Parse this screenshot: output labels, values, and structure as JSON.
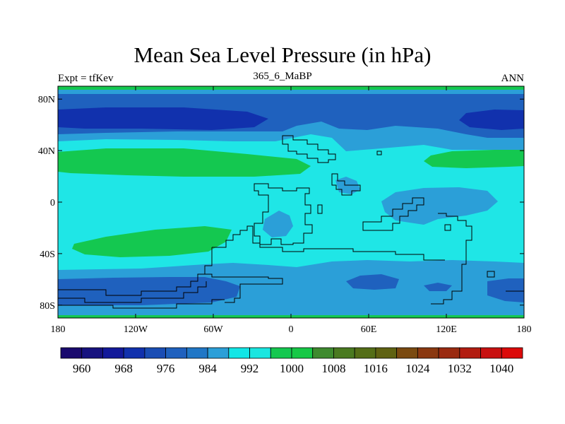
{
  "title": "Mean Sea Level Pressure (in hPa)",
  "subtitle_left": "Expt = tfKev",
  "subtitle_center": "365_6_MaBP",
  "subtitle_right": "ANN",
  "x_ticks": [
    {
      "lon": -180,
      "label": "180"
    },
    {
      "lon": -120,
      "label": "120W"
    },
    {
      "lon": -60,
      "label": "60W"
    },
    {
      "lon": 0,
      "label": "0"
    },
    {
      "lon": 60,
      "label": "60E"
    },
    {
      "lon": 120,
      "label": "120E"
    },
    {
      "lon": 180,
      "label": "180"
    }
  ],
  "y_ticks": [
    {
      "lat": 80,
      "label": "80N"
    },
    {
      "lat": 40,
      "label": "40N"
    },
    {
      "lat": 0,
      "label": "0"
    },
    {
      "lat": -40,
      "label": "40S"
    },
    {
      "lat": -80,
      "label": "80S"
    }
  ],
  "colorbar": {
    "colors": [
      "#1a0a6e",
      "#17127f",
      "#13199a",
      "#1131ad",
      "#1a4db4",
      "#1f61be",
      "#2077c6",
      "#2b9fd8",
      "#12e6e6",
      "#1ae6e0",
      "#14c850",
      "#16c846",
      "#3e8a2e",
      "#4a7a20",
      "#546e17",
      "#5f6212",
      "#7a4a10",
      "#8a3810",
      "#9a2a10",
      "#b21c10",
      "#c81010",
      "#dc0a0a"
    ],
    "labels": [
      "960",
      "968",
      "976",
      "984",
      "992",
      "1000",
      "1008",
      "1016",
      "1024",
      "1032",
      "1040"
    ]
  },
  "legend_colors": {
    "ocean_background": "#1fe6e6",
    "band_976_984": "#1a4db4",
    "band_968_976": "#1131ad",
    "band_984_992": "#2b9fd8",
    "band_1000_1008": "#14c850"
  }
}
